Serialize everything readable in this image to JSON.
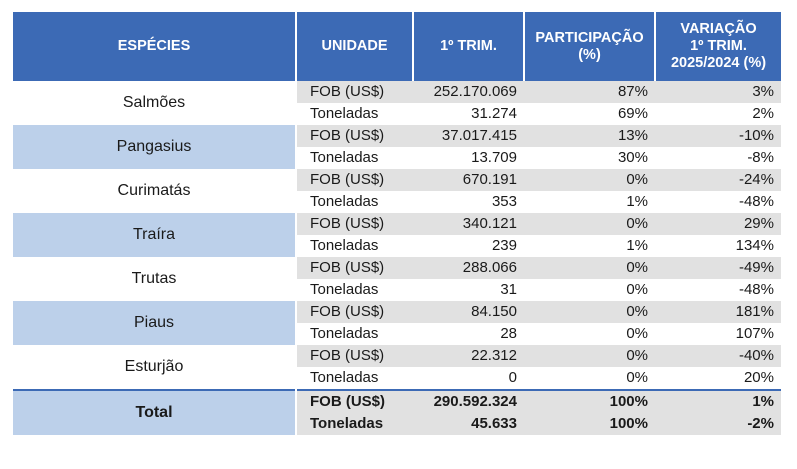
{
  "header": {
    "species": "ESPÉCIES",
    "unit": "UNIDADE",
    "trim": "1º TRIM.",
    "share_l1": "PARTICIPAÇÃO",
    "share_l2": "(%)",
    "var_l1": "VARIAÇÃO",
    "var_l2": "1º TRIM.",
    "var_l3": "2025/2024 (%)"
  },
  "rows": [
    {
      "species": "Salmões",
      "fob": {
        "unit": "FOB (US$)",
        "value": "252.170.069",
        "share": "87%",
        "var": "3%"
      },
      "ton": {
        "unit": "Toneladas",
        "value": "31.274",
        "share": "69%",
        "var": "2%"
      }
    },
    {
      "species": "Pangasius",
      "fob": {
        "unit": "FOB (US$)",
        "value": "37.017.415",
        "share": "13%",
        "var": "-10%"
      },
      "ton": {
        "unit": "Toneladas",
        "value": "13.709",
        "share": "30%",
        "var": "-8%"
      }
    },
    {
      "species": "Curimatás",
      "fob": {
        "unit": "FOB (US$)",
        "value": "670.191",
        "share": "0%",
        "var": "-24%"
      },
      "ton": {
        "unit": "Toneladas",
        "value": "353",
        "share": "1%",
        "var": "-48%"
      }
    },
    {
      "species": "Traíra",
      "fob": {
        "unit": "FOB (US$)",
        "value": "340.121",
        "share": "0%",
        "var": "29%"
      },
      "ton": {
        "unit": "Toneladas",
        "value": "239",
        "share": "1%",
        "var": "134%"
      }
    },
    {
      "species": "Trutas",
      "fob": {
        "unit": "FOB (US$)",
        "value": "288.066",
        "share": "0%",
        "var": "-49%"
      },
      "ton": {
        "unit": "Toneladas",
        "value": "31",
        "share": "0%",
        "var": "-48%"
      }
    },
    {
      "species": "Piaus",
      "fob": {
        "unit": "FOB (US$)",
        "value": "84.150",
        "share": "0%",
        "var": "181%"
      },
      "ton": {
        "unit": "Toneladas",
        "value": "28",
        "share": "0%",
        "var": "107%"
      }
    },
    {
      "species": "Esturjão",
      "fob": {
        "unit": "FOB (US$)",
        "value": "22.312",
        "share": "0%",
        "var": "-40%"
      },
      "ton": {
        "unit": "Toneladas",
        "value": "0",
        "share": "0%",
        "var": "20%"
      }
    }
  ],
  "total": {
    "species": "Total",
    "fob": {
      "unit": "FOB (US$)",
      "value": "290.592.324",
      "share": "100%",
      "var": "1%"
    },
    "ton": {
      "unit": "Toneladas",
      "value": "45.633",
      "share": "100%",
      "var": "-2%"
    }
  },
  "colors": {
    "header_bg": "#3c6ab5",
    "species_band": "#bcd0ea",
    "fob_row_bg": "#e1e1e1"
  }
}
